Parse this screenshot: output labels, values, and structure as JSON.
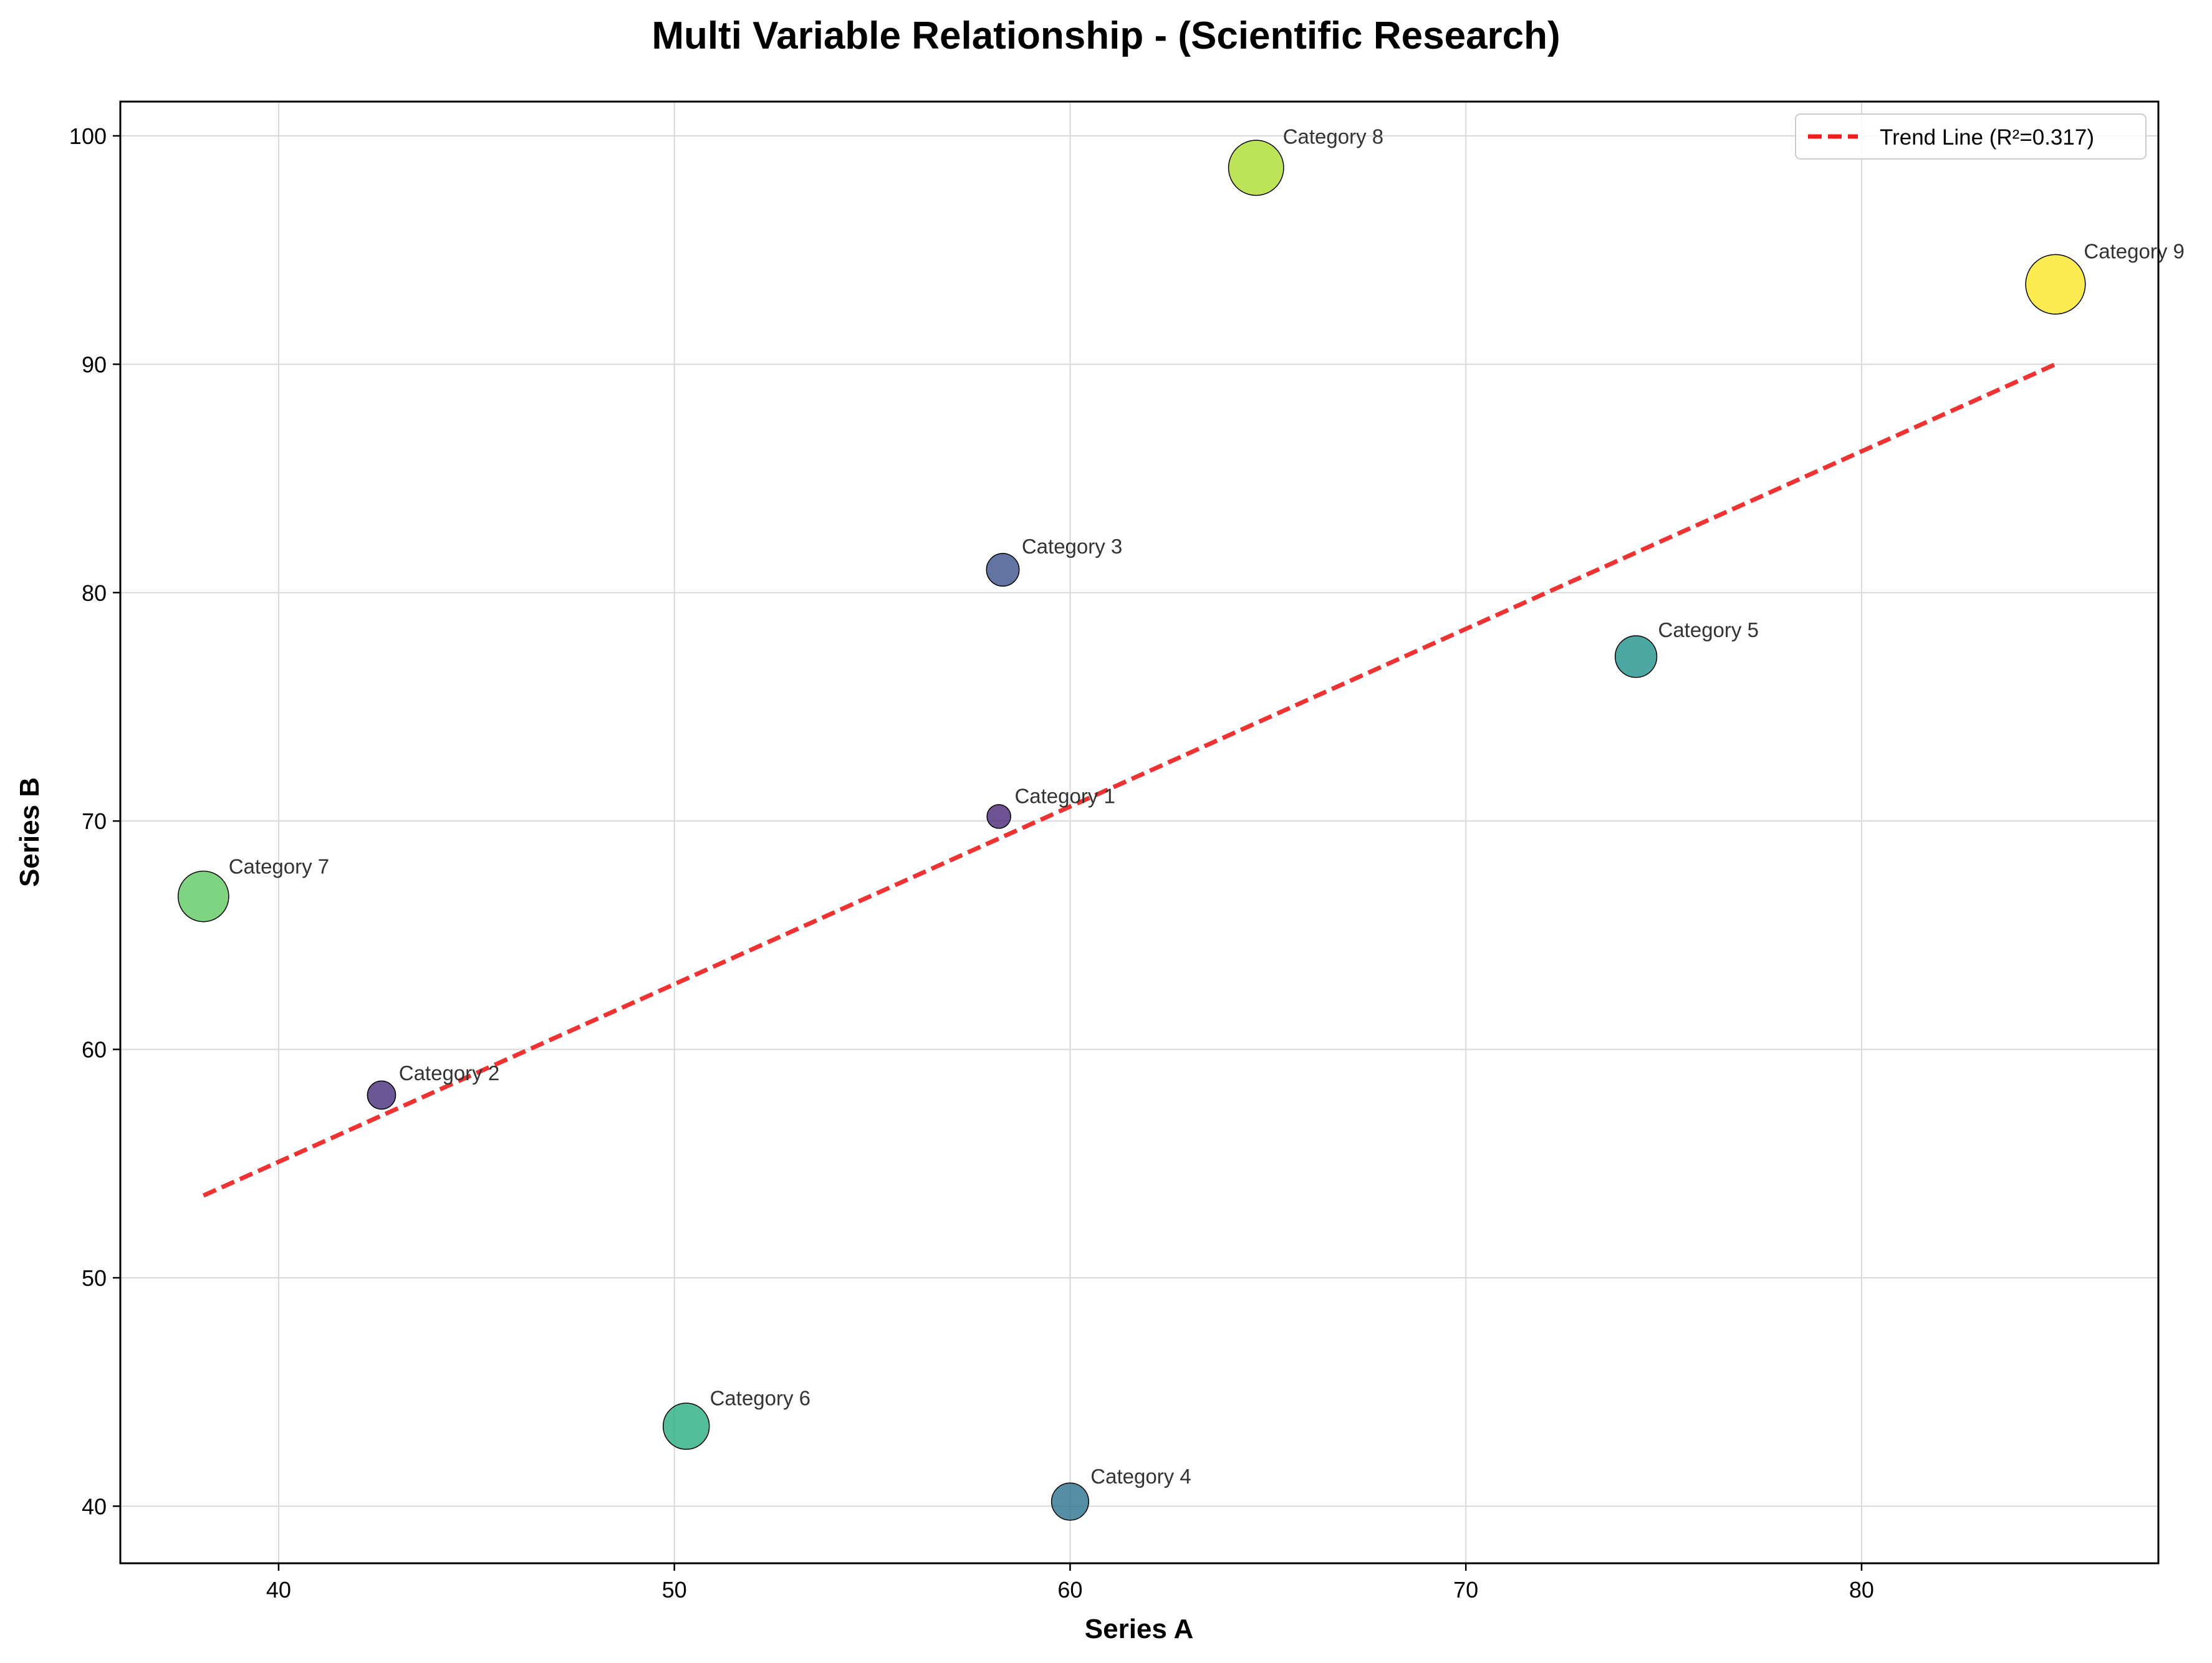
{
  "chart_data": {
    "type": "scatter",
    "title": "Multi Variable Relationship - (Scientific Research)",
    "xlabel": "Series A",
    "ylabel": "Series B",
    "xlim": [
      36,
      87.5
    ],
    "ylim": [
      37.5,
      101.5
    ],
    "xticks": [
      40,
      50,
      60,
      70,
      80
    ],
    "yticks": [
      40,
      50,
      60,
      70,
      80,
      90,
      100
    ],
    "grid": true,
    "legend_position": "top-right",
    "points": [
      {
        "label": "Category 1",
        "x": 58.2,
        "y": 70.2,
        "size": 1,
        "color": "#482878"
      },
      {
        "label": "Category 2",
        "x": 42.6,
        "y": 58.0,
        "size": 2,
        "color": "#472c7a"
      },
      {
        "label": "Category 3",
        "x": 58.3,
        "y": 81.0,
        "size": 3,
        "color": "#3b528b"
      },
      {
        "label": "Category 4",
        "x": 60.0,
        "y": 40.2,
        "size": 4,
        "color": "#2c728e"
      },
      {
        "label": "Category 5",
        "x": 74.3,
        "y": 77.2,
        "size": 5,
        "color": "#21918c"
      },
      {
        "label": "Category 6",
        "x": 50.3,
        "y": 43.5,
        "size": 6,
        "color": "#28ae80"
      },
      {
        "label": "Category 7",
        "x": 38.1,
        "y": 66.7,
        "size": 7,
        "color": "#5ec962"
      },
      {
        "label": "Category 8",
        "x": 64.7,
        "y": 98.6,
        "size": 8,
        "color": "#addc30"
      },
      {
        "label": "Category 9",
        "x": 84.9,
        "y": 93.5,
        "size": 9,
        "color": "#fde725"
      }
    ],
    "trend_line": {
      "label": "Trend Line (R²=0.317)",
      "x": [
        38.1,
        84.9
      ],
      "y": [
        53.6,
        90.0
      ],
      "color": "#ee1c1c",
      "style": "dashed"
    }
  }
}
